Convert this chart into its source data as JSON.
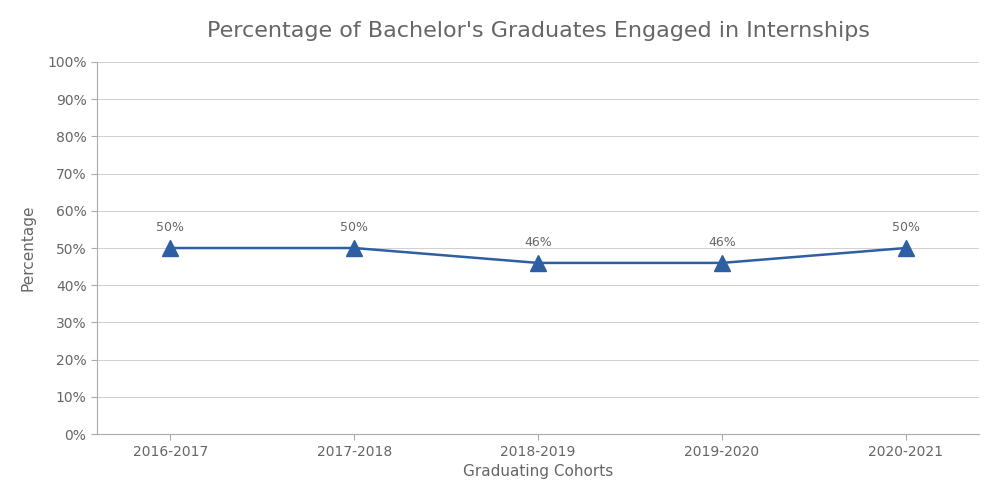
{
  "title": "Percentage of Bachelor's Graduates Engaged in Internships",
  "xlabel": "Graduating Cohorts",
  "ylabel": "Percentage",
  "categories": [
    "2016-2017",
    "2017-2018",
    "2018-2019",
    "2019-2020",
    "2020-2021"
  ],
  "values": [
    50,
    50,
    46,
    46,
    50
  ],
  "line_color": "#2E5FA3",
  "marker": "^",
  "marker_size": 11,
  "line_width": 1.8,
  "ylim": [
    0,
    100
  ],
  "yticks": [
    0,
    10,
    20,
    30,
    40,
    50,
    60,
    70,
    80,
    90,
    100
  ],
  "background_color": "#ffffff",
  "title_fontsize": 16,
  "label_fontsize": 11,
  "tick_fontsize": 10,
  "annotation_fontsize": 9,
  "grid_color": "#d0d0d0",
  "spine_color": "#aaaaaa",
  "text_color": "#666666"
}
